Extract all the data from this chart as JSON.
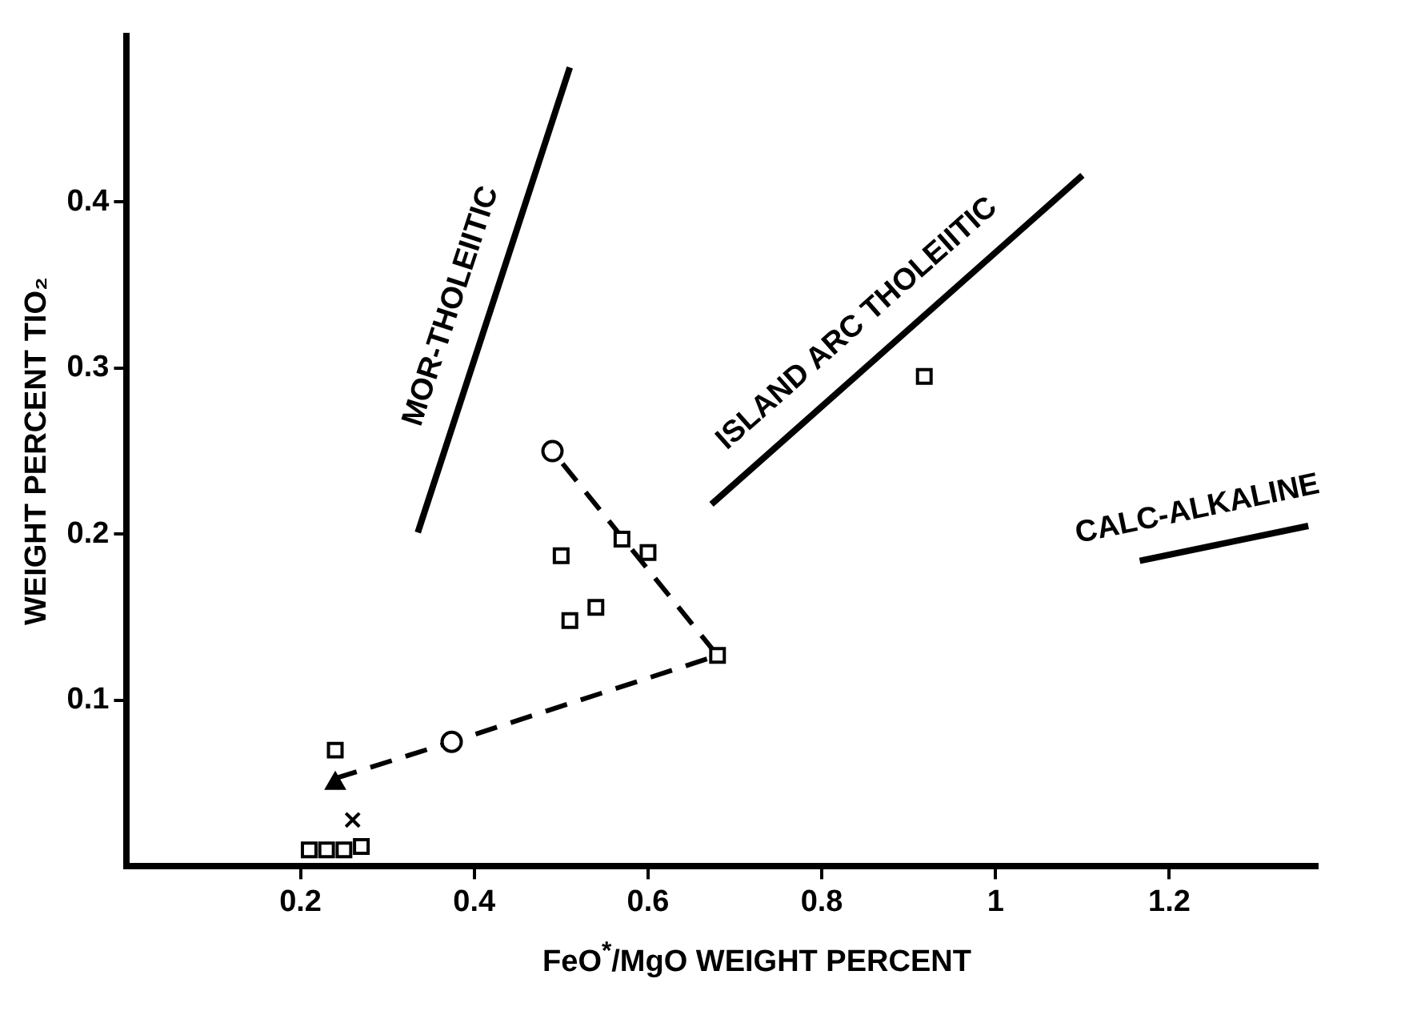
{
  "chart_data": {
    "type": "scatter",
    "xlabel": "FeO$^{*}$/MgO WEIGHT PERCENT",
    "ylabel": "WEIGHT PERCENT TIO₂",
    "xlim": [
      0,
      1.37
    ],
    "ylim": [
      0,
      0.5
    ],
    "xticks": [
      0.2,
      0.4,
      0.6,
      0.8,
      1.0,
      1.2
    ],
    "yticks": [
      0.1,
      0.2,
      0.3,
      0.4
    ],
    "grid": false,
    "legend": false,
    "series": [
      {
        "type": "line",
        "color": "#000000",
        "line_style": "dashed",
        "marker": "none",
        "x": [
          0.24,
          0.374,
          0.68,
          0.49
        ],
        "values": [
          0.053,
          0.075,
          0.127,
          0.25
        ]
      },
      {
        "type": "line",
        "color": "#000000",
        "line_style": "solid",
        "marker": "none",
        "x": [
          0.335,
          0.51
        ],
        "values": [
          0.201,
          0.481
        ]
      },
      {
        "type": "line",
        "color": "#000000",
        "line_style": "solid",
        "marker": "none",
        "x": [
          0.673,
          1.1
        ],
        "values": [
          0.218,
          0.416
        ]
      },
      {
        "type": "line",
        "color": "#000000",
        "line_style": "solid",
        "marker": "none",
        "x": [
          1.166,
          1.36
        ],
        "values": [
          0.184,
          0.205
        ]
      },
      {
        "color": "#000000",
        "marker": "circle",
        "x": [
          0.49,
          0.374
        ],
        "values": [
          0.25,
          0.075
        ]
      },
      {
        "color": "#000000",
        "marker": "square",
        "x": [
          0.5,
          0.51,
          0.54,
          0.57,
          0.6,
          0.68,
          0.918,
          0.24
        ],
        "values": [
          0.187,
          0.148,
          0.156,
          0.197,
          0.189,
          0.127,
          0.295,
          0.07
        ]
      },
      {
        "color": "#000000",
        "marker": "triangle",
        "x": [
          0.24
        ],
        "values": [
          0.05
        ]
      },
      {
        "color": "#000000",
        "marker": "cross",
        "x": [
          0.26
        ],
        "values": [
          0.028
        ]
      },
      {
        "color": "#000000",
        "marker": "square",
        "x": [
          0.21,
          0.23,
          0.25,
          0.27
        ],
        "values": [
          0.01,
          0.01,
          0.01,
          0.012
        ]
      }
    ],
    "annotations": [
      "MOR-THOLEIITIC",
      "ISLAND ARC THOLEIITIC",
      "CALC-ALKALINE"
    ]
  }
}
